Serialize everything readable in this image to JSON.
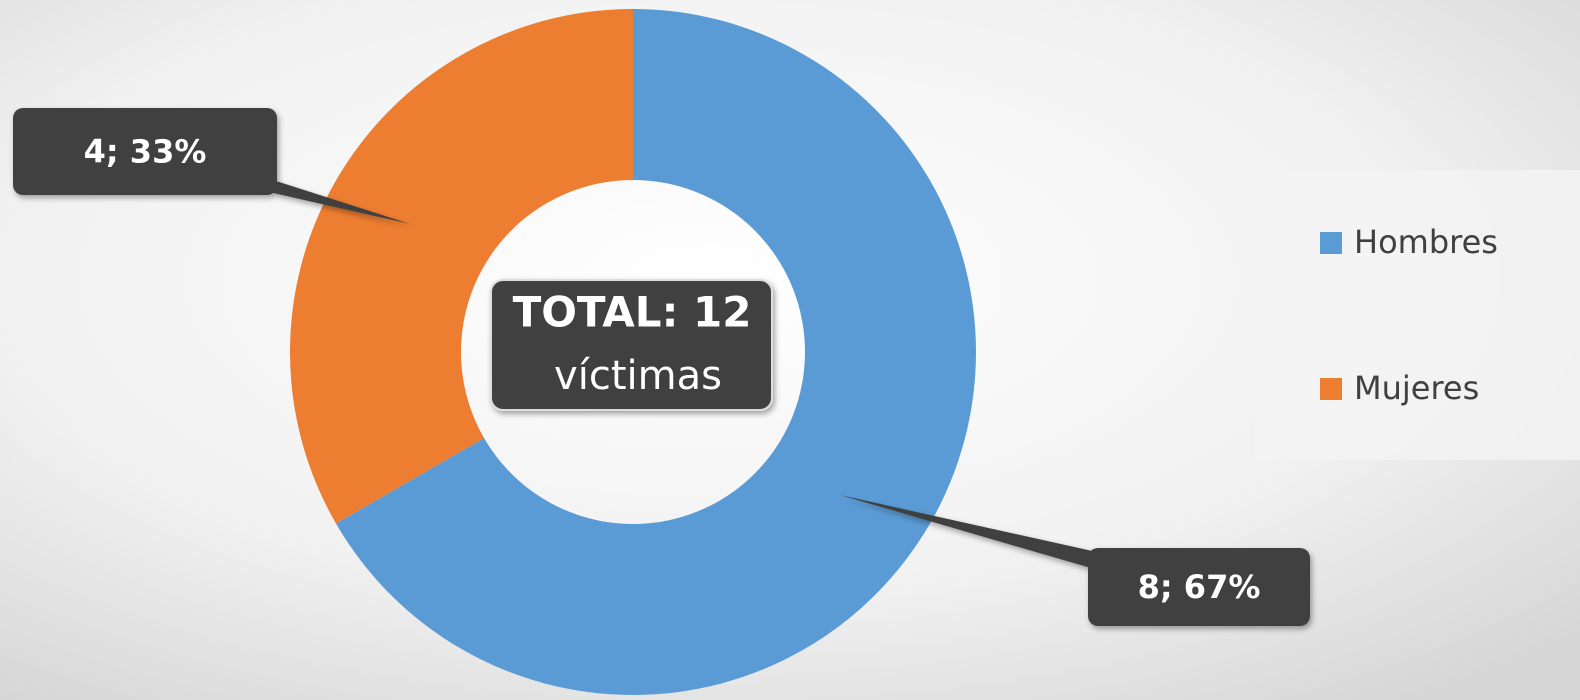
{
  "chart_data": {
    "type": "donut",
    "categories": [
      "Hombres",
      "Mujeres"
    ],
    "values": [
      8,
      4
    ],
    "value_labels": [
      "8; 67%",
      "4; 33%"
    ],
    "colors": [
      "#5b9bd5",
      "#ed7d31"
    ],
    "annotations": [
      "TOTAL: 12",
      "víctimas"
    ],
    "legend": "right"
  }
}
